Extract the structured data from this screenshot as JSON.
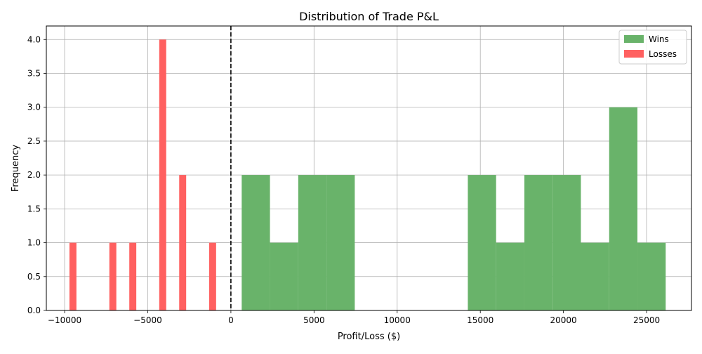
{
  "chart_data": {
    "type": "bar",
    "title": "Distribution of Trade P&L",
    "xlabel": "Profit/Loss ($)",
    "ylabel": "Frequency",
    "xlim": [
      -11100,
      27700
    ],
    "ylim": [
      0,
      4.2
    ],
    "xticks": [
      -10000,
      -5000,
      0,
      5000,
      10000,
      15000,
      20000,
      25000
    ],
    "xtick_labels": [
      "−10000",
      "−5000",
      "0",
      "5000",
      "10000",
      "15000",
      "20000",
      "25000"
    ],
    "yticks": [
      0,
      0.5,
      1,
      1.5,
      2,
      2.5,
      3,
      3.5,
      4
    ],
    "ytick_labels": [
      "0.0",
      "0.5",
      "1.0",
      "1.5",
      "2.0",
      "2.5",
      "3.0",
      "3.5",
      "4.0"
    ],
    "grid": true,
    "legend_position": "top-right",
    "zero_line": {
      "x": 0,
      "style": "dashed",
      "color": "#000000"
    },
    "series": [
      {
        "name": "Wins",
        "color": "#69b36a",
        "bin_edges": [
          650,
          2350,
          4050,
          5750,
          7450,
          9150,
          10850,
          12550,
          14250,
          15950,
          17650,
          19350,
          21050,
          22750,
          24450,
          26150
        ],
        "counts": [
          2,
          1,
          2,
          2,
          0,
          0,
          0,
          0,
          2,
          1,
          2,
          2,
          1,
          3,
          1
        ]
      },
      {
        "name": "Losses",
        "color": "#ff6060",
        "bin_edges": [
          -9800,
          -9200,
          -8600,
          -8000,
          -7400,
          -6800,
          -6200,
          -5600,
          -5000,
          -4400,
          -3800,
          -3200,
          -2600,
          -2000,
          -1400,
          -800
        ],
        "counts": [
          1,
          0,
          0,
          0,
          1,
          0,
          1,
          0,
          0,
          4,
          0,
          2,
          0,
          0,
          1
        ],
        "bar_width_ratio": 0.7
      }
    ]
  }
}
